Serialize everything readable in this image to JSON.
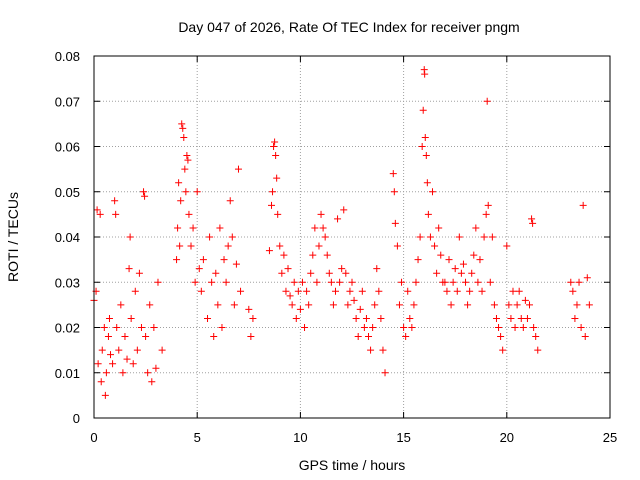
{
  "chart_data": {
    "type": "scatter",
    "title": "Day 047 of 2026, Rate Of TEC Index for receiver pngm",
    "xlabel": "GPS time / hours",
    "ylabel": "ROTI / TECUs",
    "xlim": [
      0,
      25
    ],
    "ylim": [
      0,
      0.08
    ],
    "xticks": [
      0,
      5,
      10,
      15,
      20,
      25
    ],
    "xtick_labels": [
      "0",
      "5",
      "10",
      "15",
      "20",
      "25"
    ],
    "yticks": [
      0,
      0.01,
      0.02,
      0.03,
      0.04,
      0.05,
      0.06,
      0.07,
      0.08
    ],
    "ytick_labels": [
      "0",
      "0.01",
      "0.02",
      "0.03",
      "0.04",
      "0.05",
      "0.06",
      "0.07",
      "0.08"
    ],
    "grid": true,
    "marker": "+",
    "series_color": "#ff0000",
    "series": [
      {
        "name": "ROTI",
        "points": [
          [
            0.0,
            0.026
          ],
          [
            0.1,
            0.028
          ],
          [
            0.15,
            0.046
          ],
          [
            0.2,
            0.012
          ],
          [
            0.3,
            0.045
          ],
          [
            0.35,
            0.008
          ],
          [
            0.4,
            0.015
          ],
          [
            0.5,
            0.02
          ],
          [
            0.55,
            0.005
          ],
          [
            0.6,
            0.01
          ],
          [
            0.7,
            0.018
          ],
          [
            0.75,
            0.022
          ],
          [
            0.8,
            0.014
          ],
          [
            0.9,
            0.012
          ],
          [
            1.0,
            0.048
          ],
          [
            1.05,
            0.045
          ],
          [
            1.1,
            0.02
          ],
          [
            1.2,
            0.015
          ],
          [
            1.3,
            0.025
          ],
          [
            1.4,
            0.01
          ],
          [
            1.5,
            0.018
          ],
          [
            1.6,
            0.013
          ],
          [
            1.7,
            0.033
          ],
          [
            1.75,
            0.04
          ],
          [
            1.8,
            0.022
          ],
          [
            1.9,
            0.012
          ],
          [
            2.0,
            0.028
          ],
          [
            2.1,
            0.015
          ],
          [
            2.2,
            0.032
          ],
          [
            2.3,
            0.02
          ],
          [
            2.4,
            0.05
          ],
          [
            2.45,
            0.049
          ],
          [
            2.5,
            0.018
          ],
          [
            2.6,
            0.01
          ],
          [
            2.7,
            0.025
          ],
          [
            2.8,
            0.008
          ],
          [
            2.9,
            0.02
          ],
          [
            3.0,
            0.011
          ],
          [
            3.1,
            0.03
          ],
          [
            3.3,
            0.015
          ],
          [
            4.0,
            0.035
          ],
          [
            4.05,
            0.042
          ],
          [
            4.1,
            0.052
          ],
          [
            4.15,
            0.038
          ],
          [
            4.2,
            0.048
          ],
          [
            4.25,
            0.065
          ],
          [
            4.3,
            0.064
          ],
          [
            4.35,
            0.062
          ],
          [
            4.4,
            0.055
          ],
          [
            4.45,
            0.05
          ],
          [
            4.5,
            0.058
          ],
          [
            4.55,
            0.057
          ],
          [
            4.6,
            0.045
          ],
          [
            4.7,
            0.038
          ],
          [
            4.8,
            0.042
          ],
          [
            4.9,
            0.03
          ],
          [
            5.0,
            0.05
          ],
          [
            5.1,
            0.033
          ],
          [
            5.2,
            0.028
          ],
          [
            5.3,
            0.035
          ],
          [
            5.5,
            0.022
          ],
          [
            5.6,
            0.04
          ],
          [
            5.7,
            0.03
          ],
          [
            5.8,
            0.018
          ],
          [
            5.9,
            0.032
          ],
          [
            6.0,
            0.025
          ],
          [
            6.1,
            0.042
          ],
          [
            6.2,
            0.02
          ],
          [
            6.3,
            0.035
          ],
          [
            6.4,
            0.03
          ],
          [
            6.5,
            0.038
          ],
          [
            6.6,
            0.048
          ],
          [
            6.7,
            0.04
          ],
          [
            6.8,
            0.025
          ],
          [
            6.9,
            0.034
          ],
          [
            7.0,
            0.055
          ],
          [
            7.1,
            0.028
          ],
          [
            7.5,
            0.024
          ],
          [
            7.6,
            0.018
          ],
          [
            7.7,
            0.022
          ],
          [
            8.5,
            0.037
          ],
          [
            8.6,
            0.047
          ],
          [
            8.65,
            0.05
          ],
          [
            8.7,
            0.06
          ],
          [
            8.75,
            0.061
          ],
          [
            8.8,
            0.058
          ],
          [
            8.85,
            0.053
          ],
          [
            8.9,
            0.045
          ],
          [
            9.0,
            0.038
          ],
          [
            9.1,
            0.032
          ],
          [
            9.2,
            0.036
          ],
          [
            9.3,
            0.028
          ],
          [
            9.4,
            0.033
          ],
          [
            9.5,
            0.027
          ],
          [
            9.6,
            0.025
          ],
          [
            9.7,
            0.03
          ],
          [
            9.8,
            0.022
          ],
          [
            9.9,
            0.028
          ],
          [
            10.0,
            0.024
          ],
          [
            10.1,
            0.03
          ],
          [
            10.2,
            0.02
          ],
          [
            10.3,
            0.028
          ],
          [
            10.4,
            0.025
          ],
          [
            10.5,
            0.032
          ],
          [
            10.6,
            0.036
          ],
          [
            10.7,
            0.042
          ],
          [
            10.8,
            0.03
          ],
          [
            10.9,
            0.038
          ],
          [
            11.0,
            0.045
          ],
          [
            11.1,
            0.042
          ],
          [
            11.2,
            0.04
          ],
          [
            11.3,
            0.036
          ],
          [
            11.4,
            0.032
          ],
          [
            11.5,
            0.03
          ],
          [
            11.6,
            0.025
          ],
          [
            11.7,
            0.028
          ],
          [
            11.8,
            0.044
          ],
          [
            11.9,
            0.03
          ],
          [
            12.0,
            0.033
          ],
          [
            12.1,
            0.046
          ],
          [
            12.2,
            0.032
          ],
          [
            12.3,
            0.025
          ],
          [
            12.4,
            0.028
          ],
          [
            12.5,
            0.03
          ],
          [
            12.6,
            0.026
          ],
          [
            12.7,
            0.022
          ],
          [
            12.8,
            0.018
          ],
          [
            12.9,
            0.024
          ],
          [
            13.0,
            0.028
          ],
          [
            13.1,
            0.02
          ],
          [
            13.2,
            0.022
          ],
          [
            13.3,
            0.018
          ],
          [
            13.4,
            0.015
          ],
          [
            13.5,
            0.02
          ],
          [
            13.6,
            0.025
          ],
          [
            13.7,
            0.033
          ],
          [
            13.8,
            0.028
          ],
          [
            13.9,
            0.022
          ],
          [
            14.0,
            0.015
          ],
          [
            14.1,
            0.01
          ],
          [
            14.5,
            0.054
          ],
          [
            14.55,
            0.05
          ],
          [
            14.6,
            0.043
          ],
          [
            14.7,
            0.038
          ],
          [
            14.8,
            0.025
          ],
          [
            14.9,
            0.03
          ],
          [
            15.0,
            0.02
          ],
          [
            15.1,
            0.018
          ],
          [
            15.2,
            0.028
          ],
          [
            15.3,
            0.022
          ],
          [
            15.4,
            0.02
          ],
          [
            15.5,
            0.025
          ],
          [
            15.6,
            0.03
          ],
          [
            15.7,
            0.035
          ],
          [
            15.8,
            0.04
          ],
          [
            15.9,
            0.06
          ],
          [
            15.95,
            0.068
          ],
          [
            16.0,
            0.077
          ],
          [
            16.02,
            0.076
          ],
          [
            16.05,
            0.062
          ],
          [
            16.1,
            0.058
          ],
          [
            16.15,
            0.052
          ],
          [
            16.2,
            0.045
          ],
          [
            16.3,
            0.04
          ],
          [
            16.4,
            0.05
          ],
          [
            16.5,
            0.038
          ],
          [
            16.6,
            0.032
          ],
          [
            16.7,
            0.042
          ],
          [
            16.8,
            0.036
          ],
          [
            16.9,
            0.03
          ],
          [
            17.0,
            0.03
          ],
          [
            17.1,
            0.028
          ],
          [
            17.2,
            0.035
          ],
          [
            17.3,
            0.025
          ],
          [
            17.4,
            0.03
          ],
          [
            17.5,
            0.033
          ],
          [
            17.6,
            0.028
          ],
          [
            17.7,
            0.04
          ],
          [
            17.8,
            0.032
          ],
          [
            17.9,
            0.034
          ],
          [
            18.0,
            0.03
          ],
          [
            18.1,
            0.025
          ],
          [
            18.2,
            0.028
          ],
          [
            18.3,
            0.032
          ],
          [
            18.4,
            0.036
          ],
          [
            18.5,
            0.042
          ],
          [
            18.6,
            0.03
          ],
          [
            18.7,
            0.035
          ],
          [
            18.8,
            0.028
          ],
          [
            18.9,
            0.04
          ],
          [
            19.0,
            0.045
          ],
          [
            19.05,
            0.07
          ],
          [
            19.1,
            0.047
          ],
          [
            19.2,
            0.03
          ],
          [
            19.3,
            0.04
          ],
          [
            19.4,
            0.025
          ],
          [
            19.5,
            0.022
          ],
          [
            19.6,
            0.02
          ],
          [
            19.7,
            0.018
          ],
          [
            19.8,
            0.015
          ],
          [
            20.0,
            0.038
          ],
          [
            20.1,
            0.025
          ],
          [
            20.2,
            0.022
          ],
          [
            20.3,
            0.028
          ],
          [
            20.4,
            0.02
          ],
          [
            20.5,
            0.025
          ],
          [
            20.6,
            0.028
          ],
          [
            20.7,
            0.022
          ],
          [
            20.8,
            0.02
          ],
          [
            20.9,
            0.026
          ],
          [
            21.0,
            0.022
          ],
          [
            21.1,
            0.025
          ],
          [
            21.2,
            0.044
          ],
          [
            21.25,
            0.043
          ],
          [
            21.3,
            0.02
          ],
          [
            21.4,
            0.018
          ],
          [
            21.5,
            0.015
          ],
          [
            23.1,
            0.03
          ],
          [
            23.2,
            0.028
          ],
          [
            23.3,
            0.022
          ],
          [
            23.4,
            0.025
          ],
          [
            23.5,
            0.03
          ],
          [
            23.6,
            0.02
          ],
          [
            23.7,
            0.047
          ],
          [
            23.8,
            0.018
          ],
          [
            23.9,
            0.031
          ],
          [
            24.0,
            0.025
          ]
        ]
      }
    ]
  }
}
